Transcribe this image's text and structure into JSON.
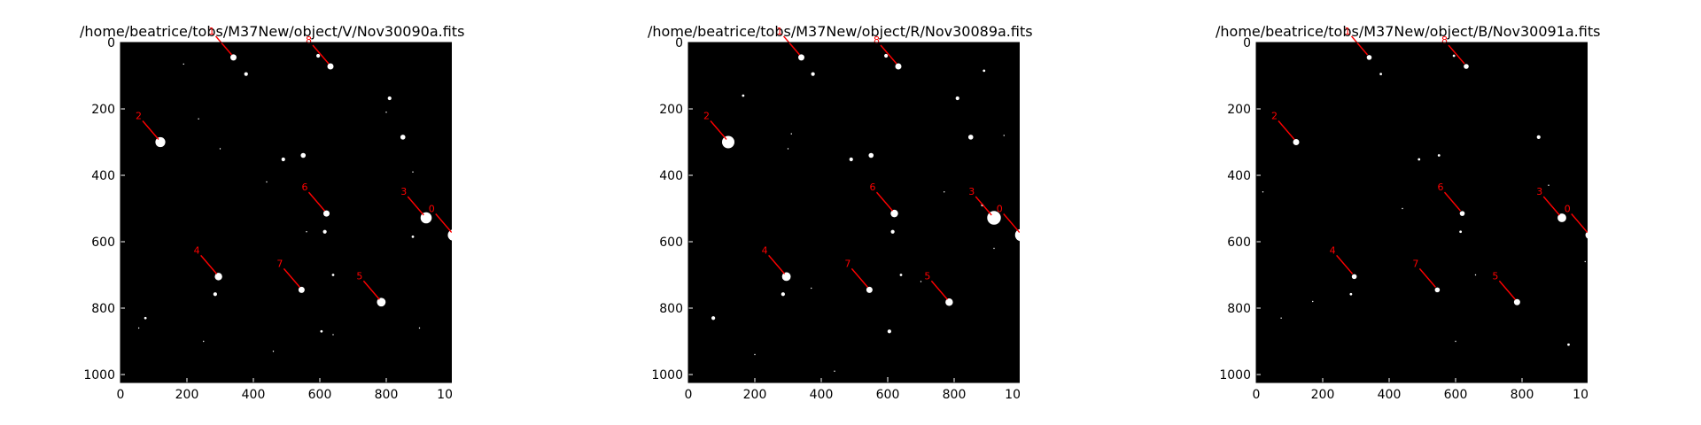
{
  "chart_data": [
    {
      "type": "scatter",
      "title": "/home/beatrice/tobs/M37New/object/V/Nov30090a.fits",
      "xlim": [
        0,
        1024
      ],
      "ylim": [
        1024,
        0
      ],
      "xticks": [
        "0",
        "200",
        "400",
        "600",
        "800",
        "1000"
      ],
      "yticks": [
        "0",
        "200",
        "400",
        "600",
        "800",
        "1000"
      ],
      "background": "#000000",
      "marker_color": "#ff0000",
      "stars": [
        {
          "x": 340,
          "y": 45,
          "r": 5
        },
        {
          "x": 378,
          "y": 95,
          "r": 3
        },
        {
          "x": 595,
          "y": 40,
          "r": 3
        },
        {
          "x": 632,
          "y": 72,
          "r": 5
        },
        {
          "x": 810,
          "y": 168,
          "r": 3
        },
        {
          "x": 850,
          "y": 285,
          "r": 4
        },
        {
          "x": 120,
          "y": 300,
          "r": 8
        },
        {
          "x": 550,
          "y": 340,
          "r": 4
        },
        {
          "x": 490,
          "y": 352,
          "r": 3
        },
        {
          "x": 620,
          "y": 515,
          "r": 5
        },
        {
          "x": 615,
          "y": 570,
          "r": 3
        },
        {
          "x": 920,
          "y": 528,
          "r": 9
        },
        {
          "x": 1002,
          "y": 580,
          "r": 9
        },
        {
          "x": 880,
          "y": 585,
          "r": 2
        },
        {
          "x": 295,
          "y": 705,
          "r": 6
        },
        {
          "x": 285,
          "y": 758,
          "r": 3
        },
        {
          "x": 545,
          "y": 745,
          "r": 5
        },
        {
          "x": 785,
          "y": 782,
          "r": 7
        },
        {
          "x": 75,
          "y": 830,
          "r": 2
        },
        {
          "x": 605,
          "y": 870,
          "r": 2
        },
        {
          "x": 640,
          "y": 700,
          "r": 2
        },
        {
          "x": 235,
          "y": 230,
          "r": 1
        },
        {
          "x": 300,
          "y": 320,
          "r": 1
        },
        {
          "x": 880,
          "y": 390,
          "r": 1
        },
        {
          "x": 800,
          "y": 210,
          "r": 1
        },
        {
          "x": 250,
          "y": 900,
          "r": 1
        },
        {
          "x": 55,
          "y": 860,
          "r": 1
        },
        {
          "x": 460,
          "y": 930,
          "r": 1
        },
        {
          "x": 640,
          "y": 880,
          "r": 1
        },
        {
          "x": 190,
          "y": 65,
          "r": 1
        },
        {
          "x": 560,
          "y": 570,
          "r": 1
        },
        {
          "x": 1000,
          "y": 500,
          "r": 1
        },
        {
          "x": 440,
          "y": 420,
          "r": 1
        },
        {
          "x": 900,
          "y": 860,
          "r": 1
        }
      ],
      "markers": [
        {
          "label": "1",
          "x": 340,
          "y": 45
        },
        {
          "label": "8",
          "x": 632,
          "y": 72
        },
        {
          "label": "2",
          "x": 120,
          "y": 300
        },
        {
          "label": "6",
          "x": 620,
          "y": 515
        },
        {
          "label": "3",
          "x": 918,
          "y": 528
        },
        {
          "label": "4",
          "x": 295,
          "y": 705
        },
        {
          "label": "7",
          "x": 545,
          "y": 745
        },
        {
          "label": "5",
          "x": 785,
          "y": 782
        },
        {
          "label": "0",
          "x": 1002,
          "y": 580
        }
      ]
    },
    {
      "type": "scatter",
      "title": "/home/beatrice/tobs/M37New/object/R/Nov30089a.fits",
      "xlim": [
        0,
        1024
      ],
      "ylim": [
        1024,
        0
      ],
      "xticks": [
        "0",
        "200",
        "400",
        "600",
        "800",
        "1000"
      ],
      "yticks": [
        "0",
        "200",
        "400",
        "600",
        "800",
        "1000"
      ],
      "background": "#000000",
      "marker_color": "#ff0000",
      "stars": [
        {
          "x": 340,
          "y": 45,
          "r": 5
        },
        {
          "x": 375,
          "y": 95,
          "r": 3
        },
        {
          "x": 595,
          "y": 40,
          "r": 3
        },
        {
          "x": 632,
          "y": 72,
          "r": 5
        },
        {
          "x": 810,
          "y": 168,
          "r": 3
        },
        {
          "x": 850,
          "y": 285,
          "r": 4
        },
        {
          "x": 120,
          "y": 300,
          "r": 10
        },
        {
          "x": 550,
          "y": 340,
          "r": 4
        },
        {
          "x": 490,
          "y": 352,
          "r": 3
        },
        {
          "x": 620,
          "y": 515,
          "r": 6
        },
        {
          "x": 615,
          "y": 570,
          "r": 3
        },
        {
          "x": 920,
          "y": 528,
          "r": 11
        },
        {
          "x": 1002,
          "y": 580,
          "r": 10
        },
        {
          "x": 885,
          "y": 490,
          "r": 2
        },
        {
          "x": 295,
          "y": 705,
          "r": 7
        },
        {
          "x": 285,
          "y": 758,
          "r": 3
        },
        {
          "x": 545,
          "y": 745,
          "r": 5
        },
        {
          "x": 785,
          "y": 782,
          "r": 6
        },
        {
          "x": 75,
          "y": 830,
          "r": 3
        },
        {
          "x": 605,
          "y": 870,
          "r": 3
        },
        {
          "x": 640,
          "y": 700,
          "r": 2
        },
        {
          "x": 165,
          "y": 160,
          "r": 2
        },
        {
          "x": 890,
          "y": 85,
          "r": 2
        },
        {
          "x": 300,
          "y": 320,
          "r": 1
        },
        {
          "x": 310,
          "y": 275,
          "r": 1
        },
        {
          "x": 770,
          "y": 450,
          "r": 1
        },
        {
          "x": 200,
          "y": 940,
          "r": 1
        },
        {
          "x": 440,
          "y": 990,
          "r": 1
        },
        {
          "x": 600,
          "y": 1010,
          "r": 1
        },
        {
          "x": 700,
          "y": 720,
          "r": 1
        },
        {
          "x": 920,
          "y": 620,
          "r": 1
        },
        {
          "x": 370,
          "y": 740,
          "r": 1
        },
        {
          "x": 950,
          "y": 280,
          "r": 1
        }
      ],
      "markers": [
        {
          "label": "1",
          "x": 340,
          "y": 45
        },
        {
          "label": "8",
          "x": 632,
          "y": 72
        },
        {
          "label": "2",
          "x": 120,
          "y": 300
        },
        {
          "label": "6",
          "x": 620,
          "y": 515
        },
        {
          "label": "3",
          "x": 918,
          "y": 528
        },
        {
          "label": "4",
          "x": 295,
          "y": 705
        },
        {
          "label": "7",
          "x": 545,
          "y": 745
        },
        {
          "label": "5",
          "x": 785,
          "y": 782
        },
        {
          "label": "0",
          "x": 1002,
          "y": 580
        }
      ]
    },
    {
      "type": "scatter",
      "title": "/home/beatrice/tobs/M37New/object/B/Nov30091a.fits",
      "xlim": [
        0,
        1024
      ],
      "ylim": [
        1024,
        0
      ],
      "xticks": [
        "0",
        "200",
        "400",
        "600",
        "800",
        "1000"
      ],
      "yticks": [
        "0",
        "200",
        "400",
        "600",
        "800",
        "1000"
      ],
      "background": "#000000",
      "marker_color": "#ff0000",
      "stars": [
        {
          "x": 340,
          "y": 45,
          "r": 4
        },
        {
          "x": 375,
          "y": 95,
          "r": 2
        },
        {
          "x": 595,
          "y": 40,
          "r": 2
        },
        {
          "x": 632,
          "y": 72,
          "r": 4
        },
        {
          "x": 850,
          "y": 285,
          "r": 3
        },
        {
          "x": 120,
          "y": 300,
          "r": 5
        },
        {
          "x": 550,
          "y": 340,
          "r": 2
        },
        {
          "x": 490,
          "y": 352,
          "r": 2
        },
        {
          "x": 620,
          "y": 515,
          "r": 4
        },
        {
          "x": 615,
          "y": 570,
          "r": 2
        },
        {
          "x": 920,
          "y": 528,
          "r": 7
        },
        {
          "x": 1002,
          "y": 580,
          "r": 6
        },
        {
          "x": 295,
          "y": 705,
          "r": 4
        },
        {
          "x": 285,
          "y": 758,
          "r": 2
        },
        {
          "x": 545,
          "y": 745,
          "r": 4
        },
        {
          "x": 785,
          "y": 782,
          "r": 5
        },
        {
          "x": 75,
          "y": 830,
          "r": 1
        },
        {
          "x": 1010,
          "y": 170,
          "r": 1
        },
        {
          "x": 940,
          "y": 910,
          "r": 2
        },
        {
          "x": 20,
          "y": 450,
          "r": 1
        },
        {
          "x": 600,
          "y": 900,
          "r": 1
        },
        {
          "x": 440,
          "y": 500,
          "r": 1
        },
        {
          "x": 990,
          "y": 660,
          "r": 1
        },
        {
          "x": 170,
          "y": 780,
          "r": 1
        },
        {
          "x": 660,
          "y": 700,
          "r": 1
        },
        {
          "x": 880,
          "y": 430,
          "r": 1
        }
      ],
      "markers": [
        {
          "label": "1",
          "x": 340,
          "y": 45
        },
        {
          "label": "8",
          "x": 632,
          "y": 72
        },
        {
          "label": "2",
          "x": 120,
          "y": 300
        },
        {
          "label": "6",
          "x": 620,
          "y": 515
        },
        {
          "label": "3",
          "x": 918,
          "y": 528
        },
        {
          "label": "4",
          "x": 295,
          "y": 705
        },
        {
          "label": "7",
          "x": 545,
          "y": 745
        },
        {
          "label": "5",
          "x": 785,
          "y": 782
        },
        {
          "label": "0",
          "x": 1002,
          "y": 580
        }
      ]
    }
  ]
}
